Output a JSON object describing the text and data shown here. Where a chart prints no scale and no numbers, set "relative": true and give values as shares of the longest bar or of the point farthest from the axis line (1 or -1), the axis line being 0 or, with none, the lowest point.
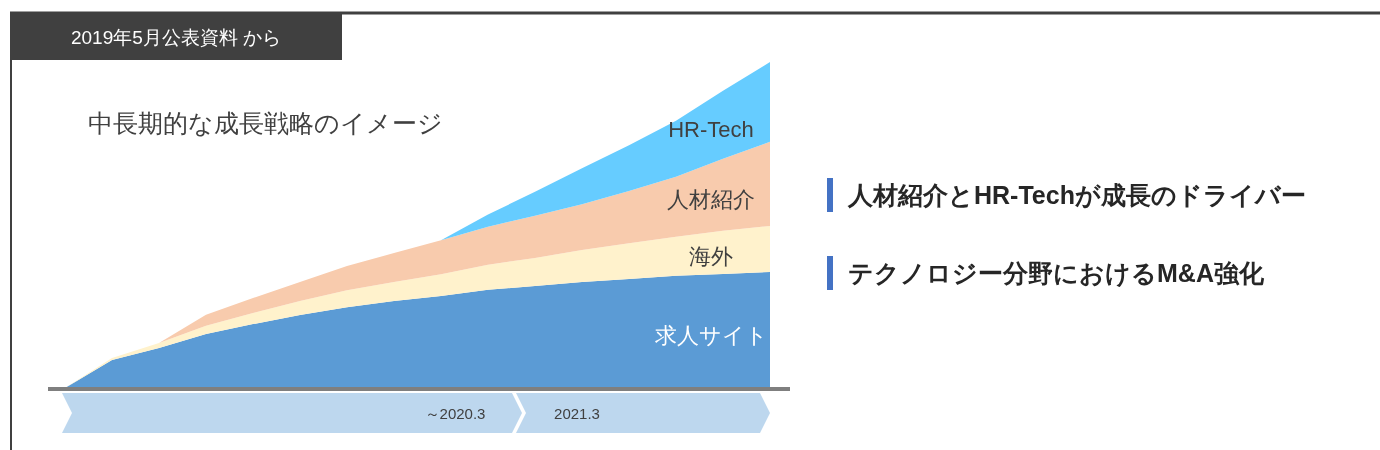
{
  "chart_data": {
    "type": "area",
    "stacked": true,
    "relative": true,
    "title": "中長期的な成長戦略のイメージ",
    "categories": [
      null,
      null,
      null,
      null,
      null,
      null,
      null,
      null,
      null,
      null,
      null,
      null,
      null,
      null,
      null,
      null
    ],
    "series": [
      {
        "name": "求人サイト",
        "color": "#5b9bd5",
        "values": [
          0,
          0.086,
          0.123,
          0.166,
          0.196,
          0.224,
          0.248,
          0.267,
          0.282,
          0.301,
          0.313,
          0.325,
          0.334,
          0.344,
          0.35,
          0.356
        ]
      },
      {
        "name": "海外",
        "color": "#fff2cc",
        "values": [
          0,
          0.006,
          0.015,
          0.025,
          0.034,
          0.043,
          0.052,
          0.058,
          0.067,
          0.077,
          0.086,
          0.098,
          0.11,
          0.12,
          0.132,
          0.141
        ]
      },
      {
        "name": "人材紹介",
        "color": "#f8cbad",
        "values": [
          null,
          null,
          0,
          0.034,
          0.046,
          0.058,
          0.074,
          0.089,
          0.104,
          0.117,
          0.129,
          0.141,
          0.16,
          0.184,
          0.221,
          0.258
        ]
      },
      {
        "name": "HR-Tech",
        "color": "#66ccff",
        "values": [
          null,
          null,
          null,
          null,
          null,
          null,
          null,
          null,
          0,
          0.037,
          0.074,
          0.11,
          0.141,
          0.172,
          0.209,
          0.245
        ]
      }
    ],
    "annotations": [
      "2019年5月公表資料 から",
      "～2020.3",
      "2021.3",
      "人材紹介とHR-Techが成長のドライバー",
      "テクノロジー分野におけるM&A強化"
    ]
  }
}
